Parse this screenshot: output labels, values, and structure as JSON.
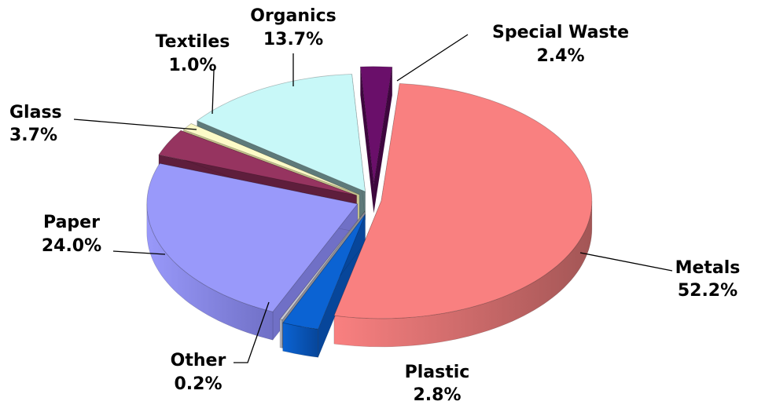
{
  "chart_data": {
    "type": "pie",
    "style": "3d-exploded",
    "title": "",
    "slices": [
      {
        "label": "Metals",
        "pct_label": "52.2%",
        "value": 52.2,
        "color": "#F98080",
        "side_color": "#A35656"
      },
      {
        "label": "Plastic",
        "pct_label": "2.8%",
        "value": 2.8,
        "color": "#0B63D3",
        "side_color": "#07469A"
      },
      {
        "label": "Other",
        "pct_label": "0.2%",
        "value": 0.2,
        "color": "#C8C8D2",
        "side_color": "#8C8C96"
      },
      {
        "label": "Paper",
        "pct_label": "24.0%",
        "value": 24.0,
        "color": "#9999FA",
        "side_color": "#7070C6"
      },
      {
        "label": "Glass",
        "pct_label": "3.7%",
        "value": 3.7,
        "color": "#963460",
        "side_color": "#5E1E3C"
      },
      {
        "label": "Textiles",
        "pct_label": "1.0%",
        "value": 1.0,
        "color": "#FDFBC8",
        "side_color": "#C8C690"
      },
      {
        "label": "Organics",
        "pct_label": "13.7%",
        "value": 13.7,
        "color": "#C8F8F8",
        "side_color": "#5E7A7A"
      },
      {
        "label": "Special Waste",
        "pct_label": "2.4%",
        "value": 2.4,
        "color": "#6A0F6A",
        "side_color": "#3E063E"
      }
    ]
  }
}
